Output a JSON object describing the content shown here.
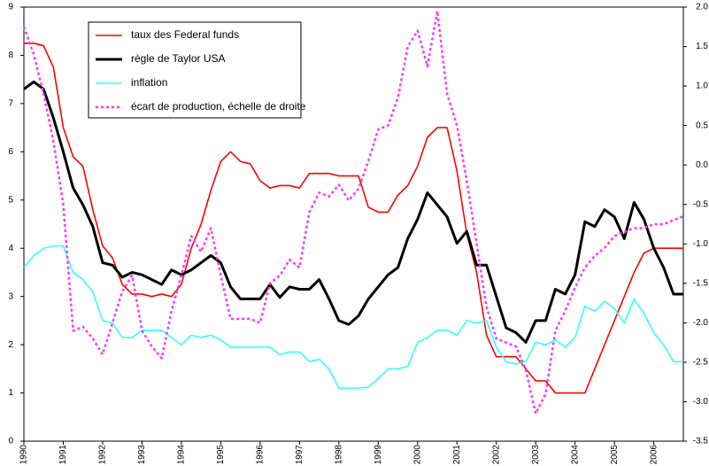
{
  "chart_data": {
    "type": "line",
    "x": [
      1990,
      1990.25,
      1990.5,
      1990.75,
      1991,
      1991.25,
      1991.5,
      1991.75,
      1992,
      1992.25,
      1992.5,
      1992.75,
      1993,
      1993.25,
      1993.5,
      1993.75,
      1994,
      1994.25,
      1994.5,
      1994.75,
      1995,
      1995.25,
      1995.5,
      1995.75,
      1996,
      1996.25,
      1996.5,
      1996.75,
      1997,
      1997.25,
      1997.5,
      1997.75,
      1998,
      1998.25,
      1998.5,
      1998.75,
      1999,
      1999.25,
      1999.5,
      1999.75,
      2000,
      2000.25,
      2000.5,
      2000.75,
      2001,
      2001.25,
      2001.5,
      2001.75,
      2002,
      2002.25,
      2002.5,
      2002.75,
      2003,
      2003.25,
      2003.5,
      2003.75,
      2004,
      2004.25,
      2004.5,
      2004.75,
      2005,
      2005.25,
      2005.5,
      2005.75,
      2006,
      2006.25,
      2006.5,
      2006.75
    ],
    "xlim": [
      1990,
      2006.75
    ],
    "xticks": [
      1990,
      1991,
      1992,
      1993,
      1994,
      1995,
      1996,
      1997,
      1998,
      1999,
      2000,
      2001,
      2002,
      2003,
      2004,
      2005,
      2006
    ],
    "ylim": [
      0,
      9
    ],
    "yticks": [
      0,
      1,
      2,
      3,
      4,
      5,
      6,
      7,
      8,
      9
    ],
    "y2lim": [
      -3.5,
      2
    ],
    "y2ticks": [
      -3.5,
      {
        "value": -3,
        "label": "-3.0"
      },
      -2.5,
      {
        "value": -2,
        "label": "-2.0"
      },
      -1.5,
      {
        "value": -1,
        "label": "-1.0"
      },
      -0.5,
      {
        "value": 0,
        "label": "0.0"
      },
      0.5,
      {
        "value": 1,
        "label": "1.0"
      },
      1.5,
      {
        "value": 2,
        "label": "2.0"
      }
    ],
    "legend": "upper left",
    "series": [
      {
        "name": "taux des Federal funds",
        "color": "#ff0000",
        "values": [
          8.25,
          8.25,
          8.2,
          7.75,
          6.5,
          5.9,
          5.7,
          4.8,
          4.05,
          3.8,
          3.25,
          3.05,
          3.05,
          3.0,
          3.05,
          3.0,
          3.25,
          4.0,
          4.5,
          5.2,
          5.8,
          6.0,
          5.8,
          5.75,
          5.4,
          5.25,
          5.3,
          5.3,
          5.25,
          5.55,
          5.55,
          5.55,
          5.5,
          5.5,
          5.5,
          4.85,
          4.75,
          4.75,
          5.1,
          5.3,
          5.7,
          6.3,
          6.5,
          6.5,
          5.6,
          4.3,
          3.5,
          2.2,
          1.75,
          1.75,
          1.75,
          1.5,
          1.25,
          1.25,
          1.0,
          1.0,
          1.0,
          1.0,
          1.5,
          2.0,
          2.5,
          3.0,
          3.5,
          3.9,
          4.0,
          4.0,
          4.0,
          4.0
        ]
      },
      {
        "name": "règle de Taylor USA",
        "color": "#000000",
        "values": [
          7.3,
          7.45,
          7.3,
          6.7,
          6.0,
          5.25,
          4.9,
          4.45,
          3.7,
          3.65,
          3.4,
          3.5,
          3.45,
          3.35,
          3.25,
          3.55,
          3.45,
          3.55,
          3.7,
          3.85,
          3.7,
          3.2,
          2.95,
          2.95,
          2.95,
          3.25,
          2.98,
          3.2,
          3.15,
          3.15,
          3.35,
          2.95,
          2.5,
          2.42,
          2.6,
          2.95,
          3.2,
          3.45,
          3.6,
          4.2,
          4.6,
          5.15,
          4.9,
          4.65,
          4.1,
          4.35,
          3.65,
          3.65,
          3.0,
          2.35,
          2.25,
          2.05,
          2.5,
          2.5,
          3.15,
          3.05,
          3.45,
          4.55,
          4.45,
          4.8,
          4.65,
          4.2,
          4.95,
          4.6,
          4.0,
          3.6,
          3.05,
          3.05
        ]
      },
      {
        "name": "inflation",
        "color": "#33ffff",
        "values": [
          3.6,
          3.85,
          4.0,
          4.05,
          4.05,
          3.5,
          3.35,
          3.1,
          2.5,
          2.45,
          2.15,
          2.15,
          2.3,
          2.3,
          2.3,
          2.15,
          2.0,
          2.2,
          2.15,
          2.2,
          2.1,
          1.95,
          1.95,
          1.95,
          1.95,
          1.95,
          1.8,
          1.85,
          1.85,
          1.65,
          1.7,
          1.5,
          1.1,
          1.1,
          1.1,
          1.12,
          1.3,
          1.5,
          1.5,
          1.55,
          2.05,
          2.15,
          2.3,
          2.3,
          2.2,
          2.5,
          2.45,
          2.5,
          1.95,
          1.65,
          1.6,
          1.65,
          2.05,
          2.0,
          2.1,
          1.95,
          2.15,
          2.8,
          2.7,
          2.9,
          2.75,
          2.45,
          2.95,
          2.65,
          2.25,
          2.0,
          1.65,
          1.65
        ]
      },
      {
        "name": "écart de production, échelle de droite",
        "color": "#ff33ff",
        "axis": "y2",
        "style": "dotted",
        "values": [
          1.75,
          1.4,
          0.9,
          0.3,
          -0.5,
          -2.1,
          -2.05,
          -2.2,
          -2.4,
          -2.0,
          -1.6,
          -1.4,
          -2.1,
          -2.3,
          -2.45,
          -1.85,
          -1.4,
          -0.9,
          -1.1,
          -0.8,
          -1.4,
          -1.95,
          -1.95,
          -1.95,
          -2.0,
          -1.5,
          -1.4,
          -1.2,
          -1.3,
          -0.6,
          -0.35,
          -0.4,
          -0.25,
          -0.45,
          -0.3,
          0.05,
          0.45,
          0.5,
          0.85,
          1.5,
          1.7,
          1.25,
          1.95,
          0.9,
          0.5,
          -0.2,
          -1.0,
          -1.8,
          -2.2,
          -2.25,
          -2.3,
          -2.6,
          -3.15,
          -2.9,
          -2.1,
          -1.85,
          -1.55,
          -1.3,
          -1.15,
          -1.05,
          -0.9,
          -0.85,
          -0.8,
          -0.8,
          -0.75,
          -0.75,
          -0.7,
          -0.65
        ]
      }
    ]
  }
}
